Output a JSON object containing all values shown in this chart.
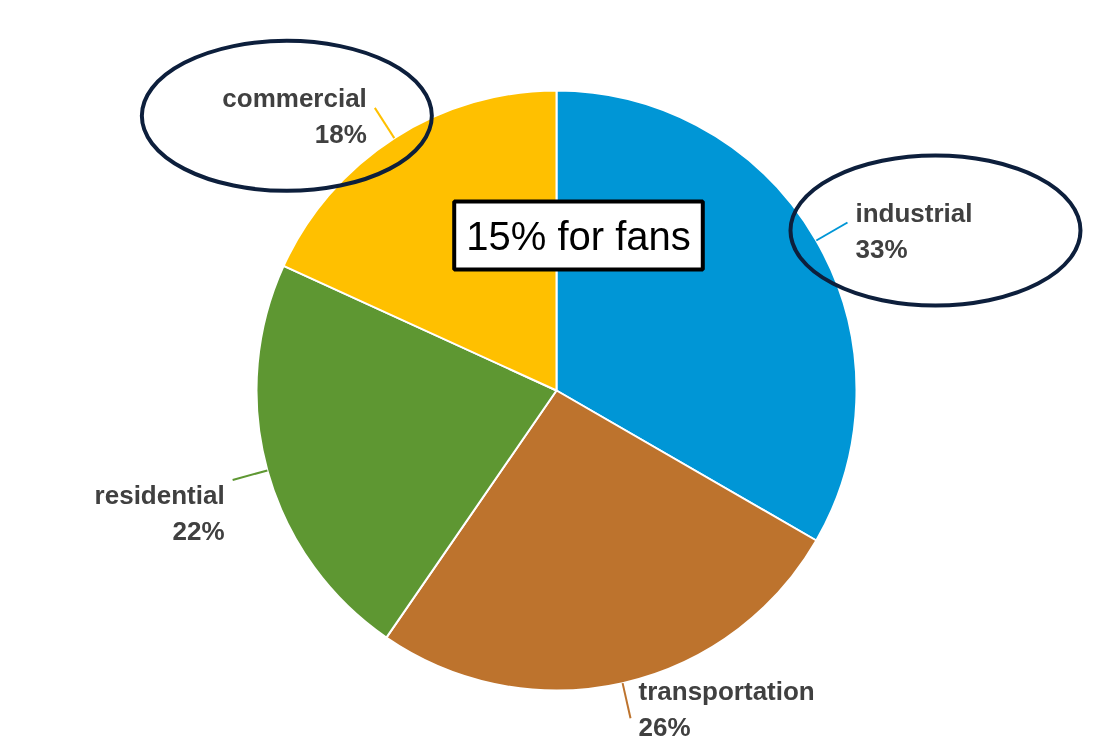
{
  "chart_data": {
    "type": "pie",
    "categories": [
      "industrial",
      "transportation",
      "residential",
      "commercial"
    ],
    "values": [
      33,
      26,
      22,
      18
    ],
    "colors": [
      "#0096d6",
      "#bd732d",
      "#5e9732",
      "#ffc000"
    ],
    "value_labels": [
      "33%",
      "26%",
      "22%",
      "18%"
    ],
    "annotations": [
      "15% for fans"
    ]
  }
}
